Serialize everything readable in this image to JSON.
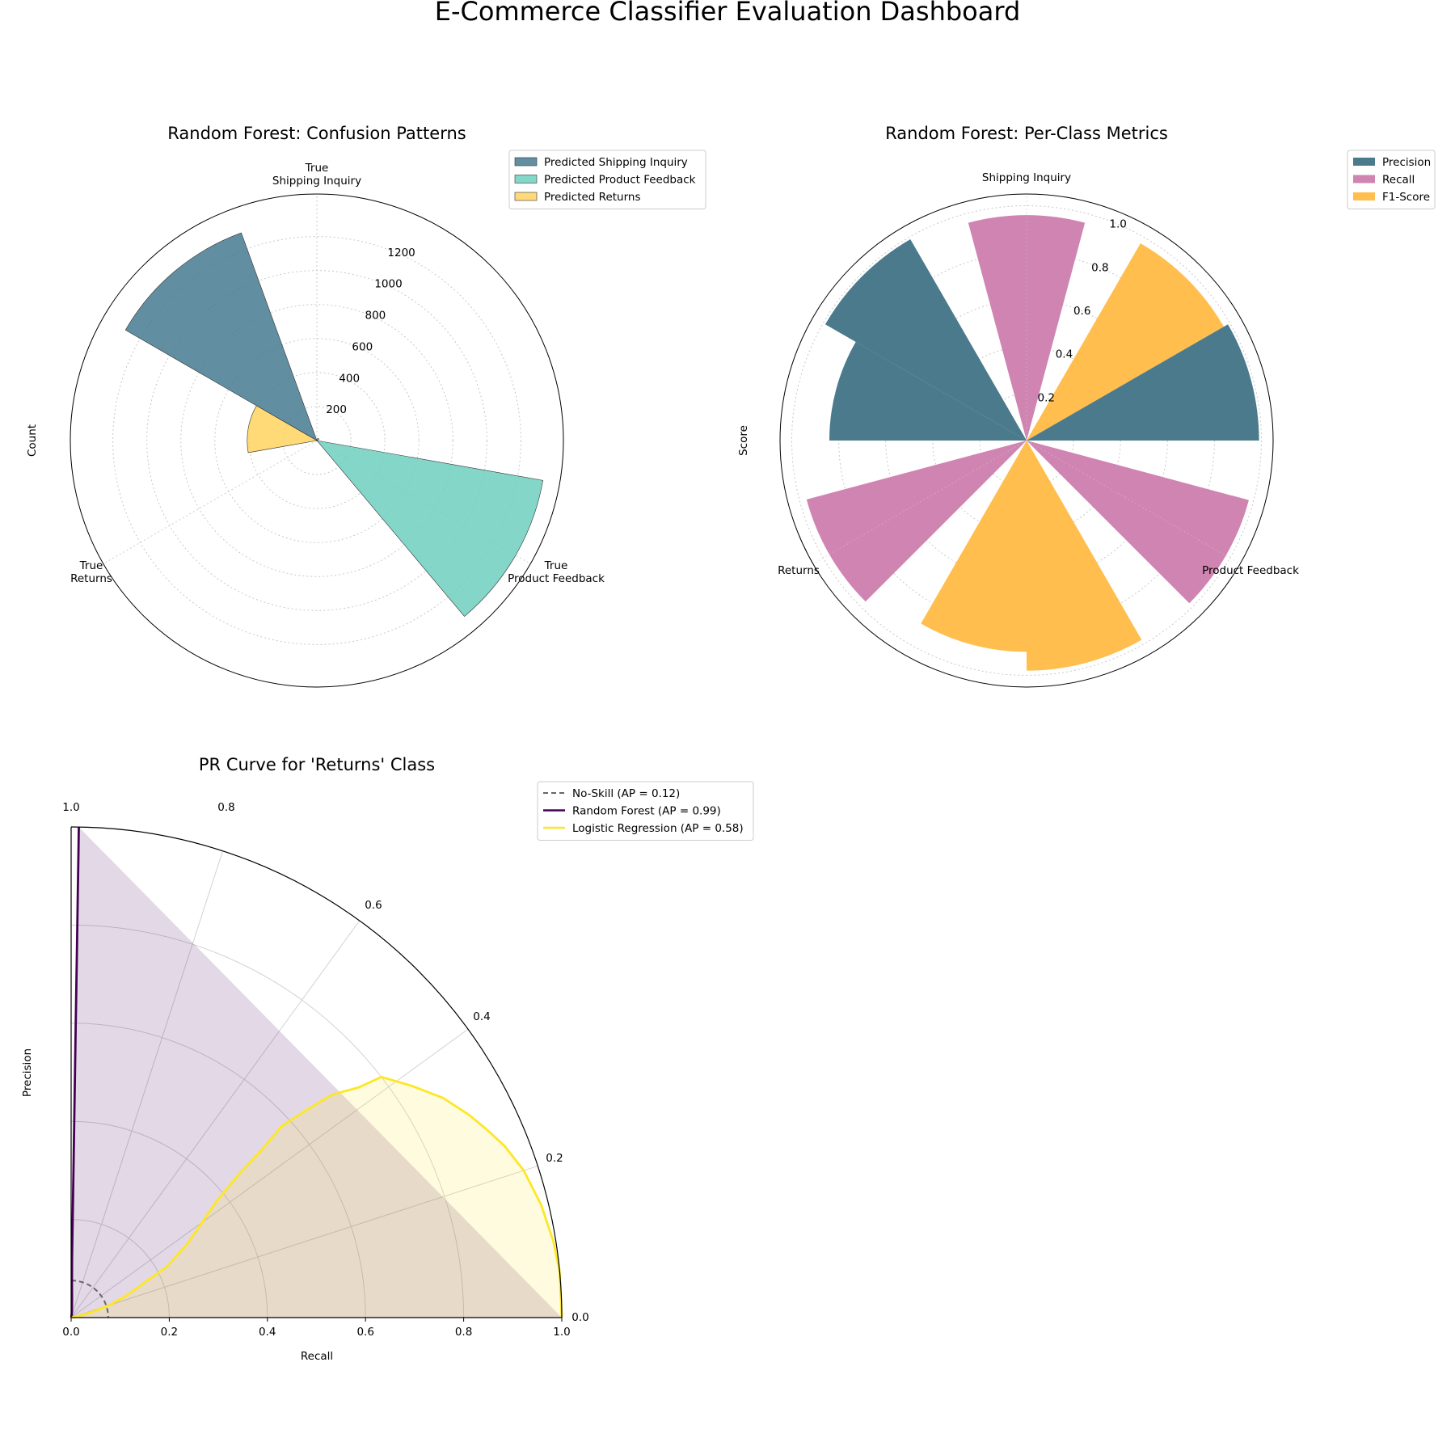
{
  "dashboard_title": "E-Commerce Classifier Evaluation Dashboard",
  "colors": {
    "shipping": "#457b91",
    "product": "#6fcfbf",
    "returns": "#ffd35f",
    "precision": "#4a7a8c",
    "recall": "#d084b2",
    "f1": "#ffbe4d",
    "random_forest": "#440154",
    "logistic_regression": "#fde725",
    "no_skill": "#666666"
  },
  "chart_data": [
    {
      "type": "polar-bar",
      "title": "Random Forest: Confusion Patterns",
      "radial_label": "Count",
      "radial_ticks": [
        200,
        400,
        600,
        800,
        1000,
        1200
      ],
      "rlim": [
        0,
        1450
      ],
      "categories": [
        "True\nShipping Inquiry",
        "True\nProduct Feedback",
        "True\nReturns"
      ],
      "series": [
        {
          "name": "Predicted Shipping Inquiry",
          "values": [
            1300,
            3,
            0
          ]
        },
        {
          "name": "Predicted Product Feedback",
          "values": [
            5,
            1350,
            0
          ]
        },
        {
          "name": "Predicted Returns",
          "values": [
            15,
            2,
            410
          ]
        }
      ]
    },
    {
      "type": "polar-bar",
      "title": "Random Forest: Per-Class Metrics",
      "radial_label": "Score",
      "radial_ticks": [
        0.2,
        0.4,
        0.6,
        0.8,
        1.0
      ],
      "rlim": [
        0,
        1.05
      ],
      "categories": [
        "Shipping Inquiry",
        "Product Feedback",
        "Returns"
      ],
      "series": [
        {
          "name": "Precision",
          "values": [
            0.99,
            0.99,
            0.84
          ]
        },
        {
          "name": "Recall",
          "values": [
            0.96,
            0.98,
            0.97
          ]
        },
        {
          "name": "F1-Score",
          "values": [
            0.97,
            0.98,
            0.9
          ]
        }
      ]
    },
    {
      "type": "line",
      "title": "PR Curve for 'Returns' Class",
      "xlabel": "Recall",
      "ylabel": "Precision",
      "xlim": [
        0,
        1
      ],
      "ylim": [
        0,
        1
      ],
      "x_ticks": [
        "0.0",
        "0.2",
        "0.4",
        "0.6",
        "0.8",
        "1.0"
      ],
      "arc_ticks": [
        "0.0",
        "0.2",
        "0.4",
        "0.6",
        "0.8",
        "1.0"
      ],
      "series": [
        {
          "name": "No-Skill (AP = 0.12)",
          "style": "dashed",
          "constant": 0.12
        },
        {
          "name": "Random Forest (AP = 0.99)",
          "points": [
            [
              0.0,
              0.6
            ],
            [
              0.0,
              0.75
            ],
            [
              0.005,
              0.85
            ],
            [
              0.01,
              0.91
            ],
            [
              0.02,
              0.95
            ],
            [
              0.04,
              0.97
            ],
            [
              0.07,
              0.985
            ],
            [
              0.12,
              0.99
            ],
            [
              0.2,
              0.99
            ],
            [
              0.3,
              0.99
            ],
            [
              0.45,
              0.99
            ],
            [
              0.6,
              0.99
            ],
            [
              0.75,
              0.99
            ],
            [
              0.87,
              0.99
            ],
            [
              0.95,
              0.99
            ],
            [
              1.0,
              0.99
            ]
          ]
        },
        {
          "name": "Logistic Regression (AP = 0.58)",
          "points": [
            [
              0.0,
              0.12
            ],
            [
              0.02,
              0.14
            ],
            [
              0.05,
              0.17
            ],
            [
              0.08,
              0.2
            ],
            [
              0.12,
              0.24
            ],
            [
              0.16,
              0.28
            ],
            [
              0.22,
              0.31
            ],
            [
              0.28,
              0.36
            ],
            [
              0.33,
              0.4
            ],
            [
              0.38,
              0.43
            ],
            [
              0.45,
              0.45
            ],
            [
              0.52,
              0.46
            ],
            [
              0.58,
              0.47
            ],
            [
              0.64,
              0.46
            ],
            [
              0.7,
              0.45
            ],
            [
              0.75,
              0.43
            ],
            [
              0.8,
              0.42
            ],
            [
              0.84,
              0.38
            ],
            [
              0.88,
              0.34
            ],
            [
              0.91,
              0.3
            ],
            [
              0.93,
              0.27
            ],
            [
              0.95,
              0.24
            ],
            [
              0.97,
              0.2
            ],
            [
              0.985,
              0.15
            ],
            [
              0.995,
              0.1
            ],
            [
              1.0,
              0.06
            ],
            [
              1.0,
              0.0
            ]
          ]
        }
      ]
    }
  ]
}
